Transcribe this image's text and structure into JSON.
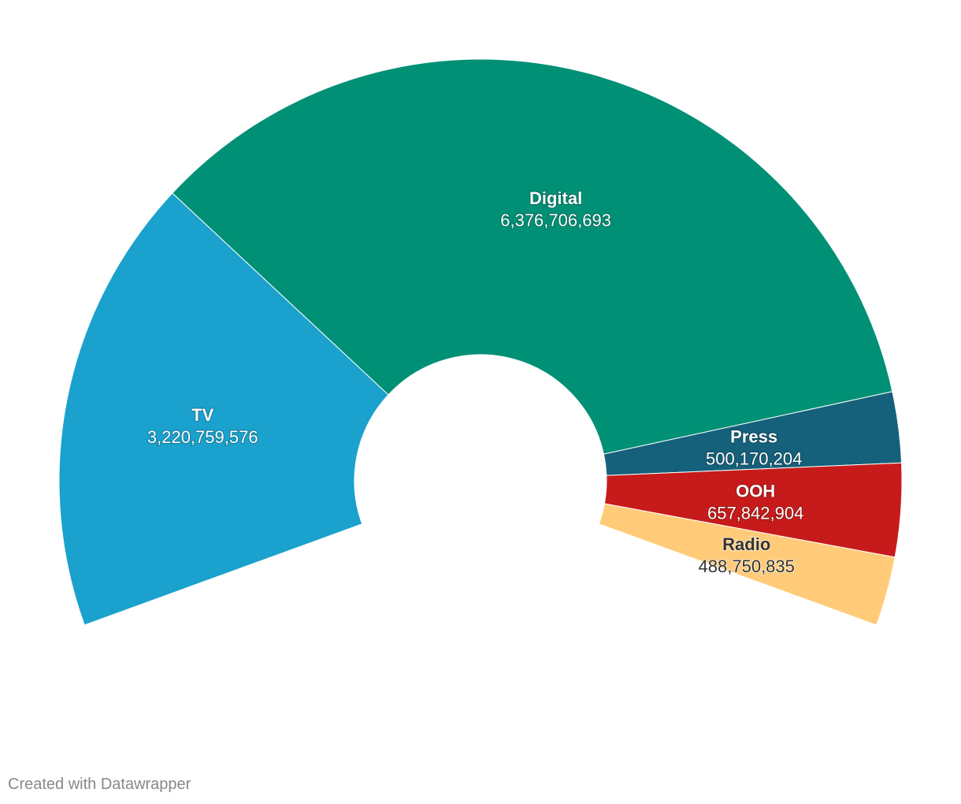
{
  "chart_data": {
    "type": "pie",
    "variant": "half-donut",
    "categories": [
      "TV",
      "Digital",
      "Press",
      "OOH",
      "Radio"
    ],
    "values": [
      3220759576,
      6376706693,
      500170204,
      657842904,
      488750835
    ],
    "value_labels": [
      "3,220,759,576",
      "6,376,706,693",
      "500,170,204",
      "657,842,904",
      "488,750,835"
    ],
    "colors": [
      "#1aa1cd",
      "#009075",
      "#15607a",
      "#c71b1b",
      "#ffcb78"
    ],
    "label_styles": [
      "light",
      "light",
      "light",
      "light",
      "dark"
    ],
    "legend": "none"
  },
  "footer": {
    "credit": "Created with Datawrapper"
  }
}
